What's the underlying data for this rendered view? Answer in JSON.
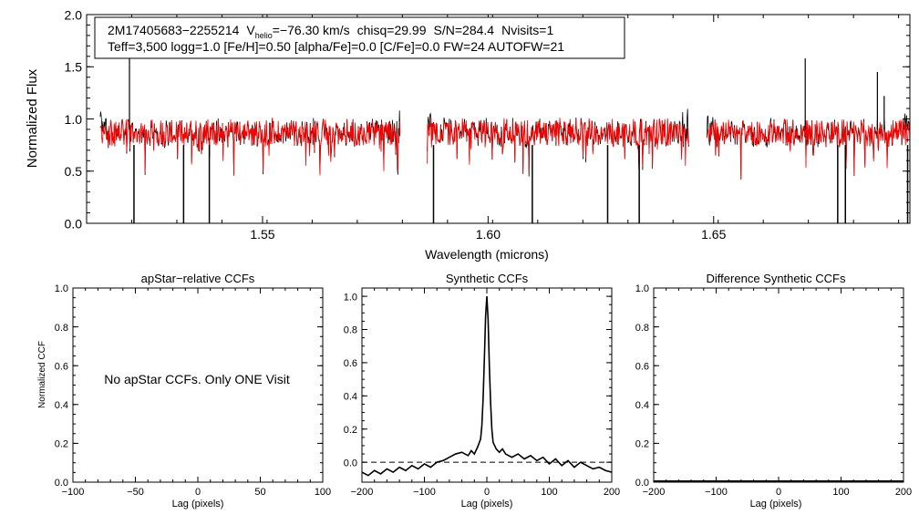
{
  "chart_data": [
    {
      "id": "spectrum",
      "type": "line",
      "title": "",
      "xlabel": "Wavelength (microns)",
      "ylabel": "Normalized Flux",
      "xlim": [
        1.511,
        1.6935
      ],
      "ylim": [
        0.0,
        2.0
      ],
      "xticks": [
        1.55,
        1.6,
        1.65
      ],
      "xtick_labels": [
        "1.55",
        "1.60",
        "1.65"
      ],
      "yticks": [
        0.0,
        0.5,
        1.0,
        1.5,
        2.0
      ],
      "ytick_labels": [
        "0.0",
        "0.5",
        "1.0",
        "1.5",
        "2.0"
      ],
      "chips": [
        [
          1.514,
          1.5805
        ],
        [
          1.5865,
          1.6445
        ],
        [
          1.6485,
          1.6935
        ]
      ],
      "mean_flux": 0.87,
      "series": [
        {
          "name": "observed",
          "color": "#000000"
        },
        {
          "name": "synthetic",
          "color": "#ff0000"
        }
      ],
      "spikes": [
        {
          "x": 1.5205,
          "y": 1.98
        },
        {
          "x": 1.6703,
          "y": 1.58
        },
        {
          "x": 1.6863,
          "y": 1.45
        },
        {
          "x": 1.6878,
          "y": 1.22
        }
      ],
      "dips": [
        {
          "x": 1.5215,
          "y": 0.0
        },
        {
          "x": 1.5325,
          "y": 0.0
        },
        {
          "x": 1.5382,
          "y": 0.0
        },
        {
          "x": 1.5879,
          "y": 0.0
        },
        {
          "x": 1.6098,
          "y": 0.0
        },
        {
          "x": 1.6265,
          "y": 0.0
        },
        {
          "x": 1.6335,
          "y": 0.0
        },
        {
          "x": 1.6775,
          "y": 0.0
        },
        {
          "x": 1.6792,
          "y": 0.0
        },
        {
          "x": 1.693,
          "y": 0.0
        }
      ],
      "annotation": {
        "star_id": "2M17405683−2255214",
        "vhelio_label": "V",
        "vhelio_sub": "helio",
        "vhelio_value": "=−76.30 km/s",
        "chisq": "chisq=29.99",
        "snr": "S/N=284.4",
        "nvisits": "Nvisits=1",
        "line2": "Teff=3,500 logg=1.0 [Fe/H]=0.50 [alpha/Fe]=0.0 [C/Fe]=0.0 FW=24 AUTOFW=21"
      }
    },
    {
      "id": "apstar",
      "type": "line",
      "title": "apStar−relative CCFs",
      "xlabel": "Lag (pixels)",
      "ylabel": "Normalized CCF",
      "xlim": [
        -100,
        100
      ],
      "ylim": [
        0.0,
        1.0
      ],
      "xticks": [
        -100,
        -50,
        0,
        50,
        100
      ],
      "xtick_labels": [
        "−100",
        "−50",
        "0",
        "50",
        "100"
      ],
      "yticks": [
        0.0,
        0.2,
        0.4,
        0.6,
        0.8,
        1.0
      ],
      "ytick_labels": [
        "0.0",
        "0.2",
        "0.4",
        "0.6",
        "0.8",
        "1.0"
      ],
      "message": "No apStar CCFs.  Only ONE Visit",
      "series": []
    },
    {
      "id": "synthetic",
      "type": "line",
      "title": "Synthetic CCFs",
      "xlabel": "Lag (pixels)",
      "ylabel": "",
      "xlim": [
        -200,
        200
      ],
      "ylim": [
        -0.12,
        1.05
      ],
      "xticks": [
        -200,
        -100,
        0,
        100,
        200
      ],
      "xtick_labels": [
        "−200",
        "−100",
        "0",
        "100",
        "200"
      ],
      "yticks": [
        0.0,
        0.2,
        0.4,
        0.6,
        0.8,
        1.0
      ],
      "ytick_labels": [
        "0.0",
        "0.2",
        "0.4",
        "0.6",
        "0.8",
        "1.0"
      ],
      "zero_line": 0.0,
      "series": [
        {
          "name": "synthetic ccf",
          "x": [
            -200,
            -190,
            -180,
            -170,
            -160,
            -150,
            -140,
            -130,
            -120,
            -110,
            -100,
            -90,
            -80,
            -70,
            -60,
            -50,
            -40,
            -30,
            -25,
            -20,
            -15,
            -10,
            -8,
            -6,
            -4,
            -2,
            0,
            2,
            4,
            6,
            8,
            10,
            15,
            20,
            25,
            30,
            40,
            50,
            60,
            70,
            80,
            90,
            100,
            110,
            120,
            130,
            140,
            150,
            160,
            170,
            180,
            190,
            200
          ],
          "y": [
            -0.06,
            -0.08,
            -0.05,
            -0.07,
            -0.04,
            -0.06,
            -0.03,
            -0.05,
            -0.02,
            -0.04,
            -0.01,
            -0.03,
            0.0,
            0.01,
            0.03,
            0.05,
            0.06,
            0.04,
            0.07,
            0.05,
            0.09,
            0.14,
            0.22,
            0.38,
            0.62,
            0.88,
            1.0,
            0.86,
            0.58,
            0.36,
            0.2,
            0.12,
            0.08,
            0.06,
            0.08,
            0.05,
            0.03,
            0.05,
            0.02,
            0.04,
            0.01,
            0.03,
            -0.01,
            0.02,
            -0.02,
            0.01,
            -0.03,
            0.0,
            -0.02,
            -0.04,
            -0.03,
            -0.05,
            -0.06
          ]
        }
      ]
    },
    {
      "id": "difference",
      "type": "line",
      "title": "Difference Synthetic CCFs",
      "xlabel": "Lag (pixels)",
      "ylabel": "",
      "xlim": [
        -200,
        200
      ],
      "ylim": [
        0.0,
        1.0
      ],
      "xticks": [
        -200,
        -100,
        0,
        100,
        200
      ],
      "xtick_labels": [
        "−200",
        "−100",
        "0",
        "100",
        "200"
      ],
      "yticks": [
        0.0,
        0.2,
        0.4,
        0.6,
        0.8,
        1.0
      ],
      "ytick_labels": [
        "0.0",
        "0.2",
        "0.4",
        "0.6",
        "0.8",
        "1.0"
      ],
      "series": [
        {
          "name": "difference ccf",
          "x": [
            -200,
            200
          ],
          "y": [
            0.0,
            0.0
          ]
        }
      ]
    }
  ]
}
